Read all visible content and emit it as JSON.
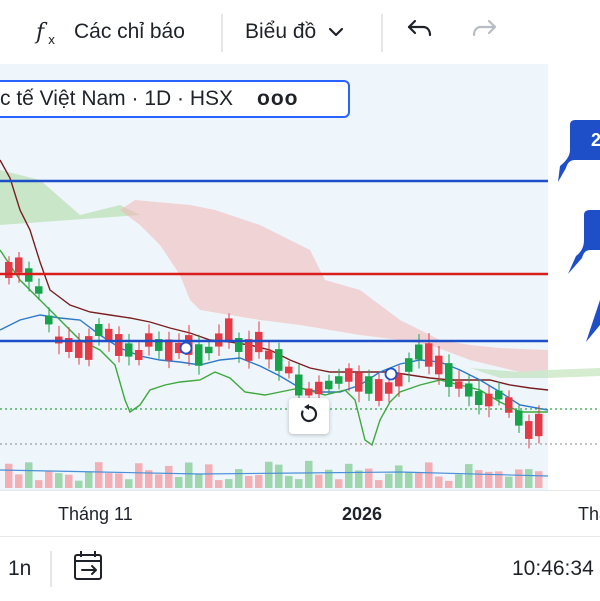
{
  "toolbar": {
    "indicators_label": "Các chỉ báo",
    "chart_type_label": "Biểu đồ"
  },
  "legend": {
    "symbol_text": "c tế Việt Nam · 1D · HSX",
    "more": "ooo"
  },
  "price_tags": [
    "2"
  ],
  "x_axis": {
    "month_label": "Tháng 11",
    "year_label": "2026",
    "next_label": "Thá"
  },
  "bottom_bar": {
    "interval": "1n",
    "time": "10:46:34"
  },
  "colors": {
    "accent": "#2962ff",
    "red_line": "#d91c1c",
    "blue_line": "#1e4fc8",
    "bull": "#16a34a",
    "bear": "#e53946",
    "cloud_bear": "#f3b6b6",
    "cloud_bull": "#b9dfb3",
    "chart_bg": "#eef6fb"
  },
  "icons": [
    "fx-icon",
    "chevron-down-icon",
    "undo-icon",
    "redo-icon",
    "reset-icon",
    "calendar-range-icon"
  ]
}
